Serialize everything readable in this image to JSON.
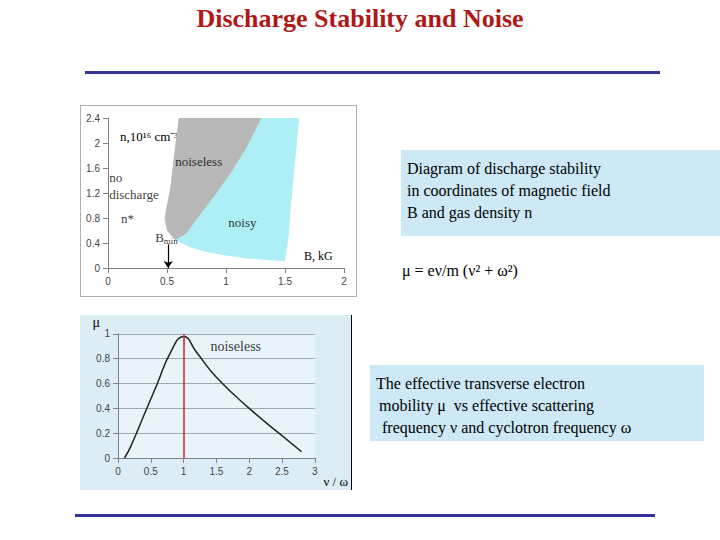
{
  "title": "Discharge Stability and Noise",
  "chart_data": [
    {
      "type": "region",
      "xlabel": "B, kG",
      "ylabel": "n,10¹⁶ cm⁻³",
      "xlim": [
        0,
        2
      ],
      "xticks": [
        0,
        0.5,
        1,
        1.5,
        2
      ],
      "ylim": [
        0,
        2.4
      ],
      "yticks": [
        0,
        0.4,
        0.8,
        1.2,
        1.6,
        2,
        2.4
      ],
      "grid": false,
      "regions": [
        {
          "color": "#aeeef5",
          "points": [
            [
              0.6,
              2.4
            ],
            [
              0.56,
              1.8
            ],
            [
              0.53,
              1.3
            ],
            [
              0.5,
              1.0
            ],
            [
              0.48,
              0.8
            ],
            [
              0.5,
              0.6
            ],
            [
              0.57,
              0.45
            ],
            [
              0.7,
              0.33
            ],
            [
              0.85,
              0.25
            ],
            [
              1.0,
              0.2
            ],
            [
              1.2,
              0.15
            ],
            [
              1.5,
              0.11
            ],
            [
              1.53,
              0.5
            ],
            [
              1.55,
              1.0
            ],
            [
              1.58,
              1.6
            ],
            [
              1.62,
              2.4
            ]
          ]
        },
        {
          "color": "#b8b8b8",
          "points": [
            [
              0.6,
              2.4
            ],
            [
              0.56,
              1.8
            ],
            [
              0.53,
              1.3
            ],
            [
              0.5,
              1.0
            ],
            [
              0.48,
              0.8
            ],
            [
              0.5,
              0.6
            ],
            [
              0.57,
              0.45
            ],
            [
              0.66,
              0.55
            ],
            [
              0.76,
              0.8
            ],
            [
              0.9,
              1.15
            ],
            [
              1.05,
              1.55
            ],
            [
              1.18,
              1.95
            ],
            [
              1.3,
              2.4
            ]
          ]
        }
      ],
      "annotations": [
        {
          "text": "noiseless",
          "x": 0.57,
          "y": 1.71
        },
        {
          "text": "no discharge",
          "x": 0.01,
          "y": 1.32
        },
        {
          "text": "n*",
          "x": 0.11,
          "y": 0.79
        },
        {
          "text": "B",
          "subscript": "min",
          "x": 0.4,
          "y": 0.49,
          "arrow": [
            [
              0.51,
              0.38
            ],
            [
              0.51,
              0
            ]
          ]
        },
        {
          "text": "noisy",
          "x": 1.02,
          "y": 0.73
        }
      ]
    },
    {
      "type": "line",
      "xlabel": "ν / ω",
      "ylabel": "μ",
      "x": [
        0.1,
        0.2,
        0.4,
        0.6,
        0.8,
        1.0,
        1.2,
        1.5,
        2.0,
        2.5,
        2.8
      ],
      "values": [
        0,
        0.1,
        0.35,
        0.6,
        0.85,
        0.98,
        0.85,
        0.65,
        0.4,
        0.18,
        0.05
      ],
      "color": "#222222",
      "xlim": [
        0,
        3
      ],
      "xticks": [
        0,
        0.5,
        1,
        1.5,
        2,
        2.5,
        3
      ],
      "ylim": [
        0,
        1
      ],
      "yticks": [
        0,
        0.2,
        0.4,
        0.6,
        0.8,
        1
      ],
      "grid": true,
      "markers": [
        {
          "x": 1,
          "color": "#cc2222"
        }
      ],
      "annotations": [
        {
          "text": "noiseless",
          "x": 1.41,
          "y": 0.9
        }
      ]
    }
  ],
  "formula": "μ = eν/m (ν² + ω²)",
  "text_boxes": [
    {
      "lines": [
        "Diagram of discharge stability",
        "in coordinates of magnetic field",
        "B and gas density n"
      ]
    },
    {
      "lines": [
        "The effective transverse electron",
        "mobility μ  vs effective scattering",
        "frequency ν and cyclotron frequency ω"
      ]
    }
  ]
}
